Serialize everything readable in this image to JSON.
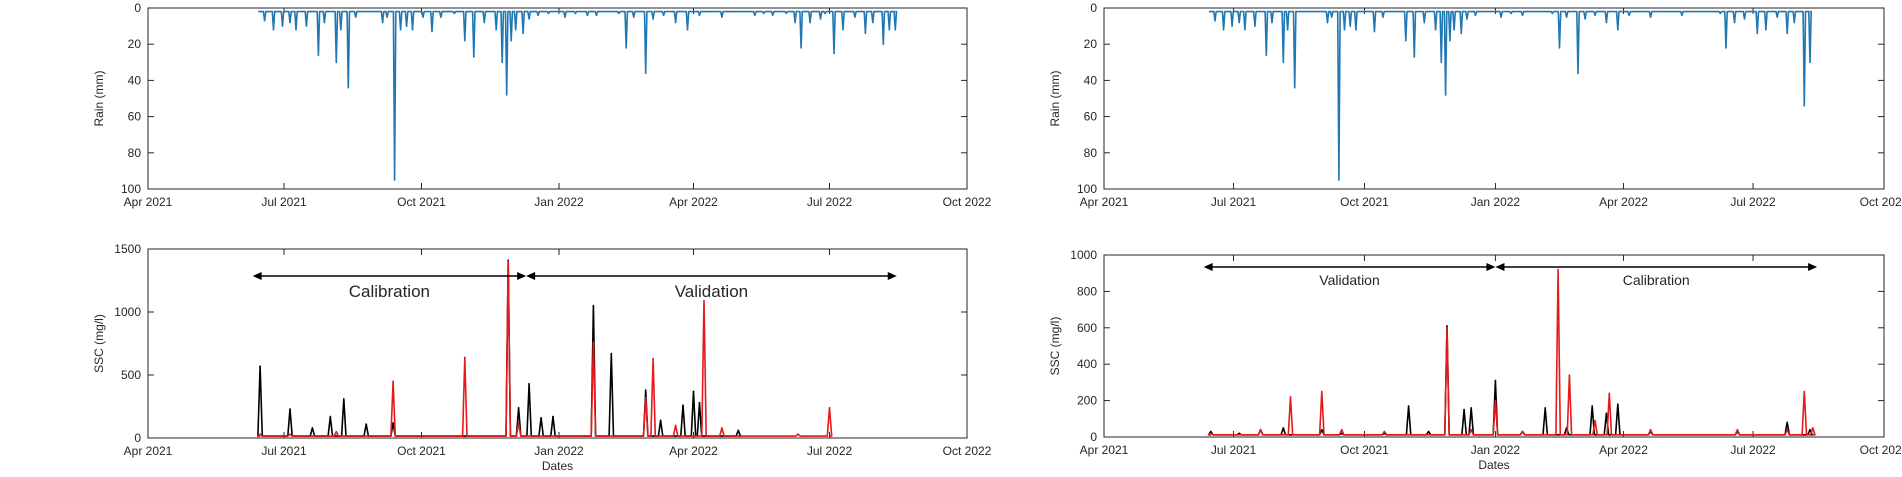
{
  "figure": {
    "xlabel": "Dates",
    "x_ticks": [
      "Apr 2021",
      "Jul 2021",
      "Oct 2021",
      "Jan 2022",
      "Apr 2022",
      "Jul 2022",
      "Oct 2022"
    ]
  },
  "colors": {
    "rain": "#1f77b4",
    "observed": "#000000",
    "simulated": "#e41a1c",
    "axis": "#262626"
  },
  "chart_data": [
    {
      "panel": "left-top",
      "type": "line",
      "title": "",
      "xlabel": "",
      "ylabel": "Rain (mm)",
      "xlim": [
        "2021-04-01",
        "2022-10-01"
      ],
      "ylim": [
        100,
        0
      ],
      "y_reversed": true,
      "y_ticks": [
        0,
        20,
        40,
        60,
        80,
        100
      ],
      "series": [
        {
          "color": "#1f77b4",
          "values": [
            [
              "2021-06-15",
              2
            ],
            [
              "2021-06-18",
              7
            ],
            [
              "2021-06-24",
              12
            ],
            [
              "2021-06-30",
              10
            ],
            [
              "2021-07-05",
              8
            ],
            [
              "2021-07-09",
              12
            ],
            [
              "2021-07-16",
              10
            ],
            [
              "2021-07-24",
              26
            ],
            [
              "2021-07-28",
              8
            ],
            [
              "2021-08-05",
              30
            ],
            [
              "2021-08-08",
              12
            ],
            [
              "2021-08-13",
              44
            ],
            [
              "2021-08-18",
              5
            ],
            [
              "2021-09-05",
              8
            ],
            [
              "2021-09-08",
              5
            ],
            [
              "2021-09-13",
              95
            ],
            [
              "2021-09-17",
              12
            ],
            [
              "2021-09-21",
              10
            ],
            [
              "2021-09-25",
              12
            ],
            [
              "2021-10-02",
              5
            ],
            [
              "2021-10-08",
              13
            ],
            [
              "2021-10-14",
              5
            ],
            [
              "2021-10-23",
              3
            ],
            [
              "2021-10-30",
              18
            ],
            [
              "2021-11-05",
              27
            ],
            [
              "2021-11-12",
              8
            ],
            [
              "2021-11-20",
              12
            ],
            [
              "2021-11-24",
              30
            ],
            [
              "2021-11-27",
              48
            ],
            [
              "2021-11-30",
              18
            ],
            [
              "2021-12-03",
              12
            ],
            [
              "2021-12-08",
              14
            ],
            [
              "2021-12-12",
              6
            ],
            [
              "2021-12-18",
              4
            ],
            [
              "2021-12-25",
              3
            ],
            [
              "2022-01-05",
              5
            ],
            [
              "2022-01-12",
              3
            ],
            [
              "2022-01-20",
              4
            ],
            [
              "2022-01-26",
              4
            ],
            [
              "2022-02-10",
              3
            ],
            [
              "2022-02-15",
              22
            ],
            [
              "2022-02-20",
              5
            ],
            [
              "2022-02-28",
              36
            ],
            [
              "2022-03-05",
              6
            ],
            [
              "2022-03-12",
              4
            ],
            [
              "2022-03-20",
              8
            ],
            [
              "2022-03-28",
              12
            ],
            [
              "2022-04-05",
              4
            ],
            [
              "2022-04-12",
              2
            ],
            [
              "2022-04-20",
              5
            ],
            [
              "2022-04-25",
              2
            ],
            [
              "2022-05-05",
              2
            ],
            [
              "2022-05-12",
              4
            ],
            [
              "2022-05-18",
              3
            ],
            [
              "2022-05-24",
              4
            ],
            [
              "2022-06-02",
              3
            ],
            [
              "2022-06-08",
              8
            ],
            [
              "2022-06-12",
              22
            ],
            [
              "2022-06-18",
              8
            ],
            [
              "2022-06-25",
              6
            ],
            [
              "2022-06-28",
              3
            ],
            [
              "2022-07-04",
              25
            ],
            [
              "2022-07-10",
              12
            ],
            [
              "2022-07-18",
              5
            ],
            [
              "2022-07-25",
              14
            ],
            [
              "2022-07-30",
              8
            ],
            [
              "2022-08-06",
              20
            ],
            [
              "2022-08-10",
              12
            ],
            [
              "2022-08-14",
              12
            ]
          ]
        }
      ]
    },
    {
      "panel": "left-bottom",
      "type": "line",
      "title": "",
      "xlabel": "Dates",
      "ylabel": "SSC (mg/l)",
      "xlim": [
        "2021-04-01",
        "2022-10-01"
      ],
      "ylim": [
        0,
        1500
      ],
      "y_ticks": [
        0,
        500,
        1000,
        1500
      ],
      "series": [
        {
          "color": "#000000",
          "values": [
            [
              "2021-06-15",
              570
            ],
            [
              "2021-07-05",
              230
            ],
            [
              "2021-07-20",
              80
            ],
            [
              "2021-08-01",
              170
            ],
            [
              "2021-08-10",
              310
            ],
            [
              "2021-08-25",
              110
            ],
            [
              "2021-09-12",
              120
            ],
            [
              "2021-11-28",
              1410
            ],
            [
              "2021-12-05",
              240
            ],
            [
              "2021-12-12",
              430
            ],
            [
              "2021-12-20",
              160
            ],
            [
              "2021-12-28",
              170
            ],
            [
              "2022-01-24",
              1050
            ],
            [
              "2022-02-05",
              670
            ],
            [
              "2022-02-28",
              380
            ],
            [
              "2022-03-10",
              140
            ],
            [
              "2022-03-25",
              260
            ],
            [
              "2022-04-01",
              370
            ],
            [
              "2022-04-05",
              280
            ],
            [
              "2022-05-01",
              60
            ]
          ]
        },
        {
          "color": "#e41a1c",
          "values": [
            [
              "2021-06-15",
              30
            ],
            [
              "2021-07-05",
              30
            ],
            [
              "2021-08-05",
              50
            ],
            [
              "2021-09-12",
              450
            ],
            [
              "2021-10-30",
              640
            ],
            [
              "2021-11-28",
              1400
            ],
            [
              "2021-12-05",
              120
            ],
            [
              "2022-01-24",
              760
            ],
            [
              "2022-02-28",
              320
            ],
            [
              "2022-03-05",
              630
            ],
            [
              "2022-03-20",
              100
            ],
            [
              "2022-04-08",
              1090
            ],
            [
              "2022-04-20",
              80
            ],
            [
              "2022-06-10",
              30
            ],
            [
              "2022-07-01",
              240
            ]
          ]
        }
      ],
      "annotations": [
        {
          "text": "Calibration",
          "from": "2021-06-10",
          "to": "2021-12-10"
        },
        {
          "text": "Validation",
          "from": "2021-12-10",
          "to": "2022-08-15"
        }
      ]
    },
    {
      "panel": "right-top",
      "type": "line",
      "title": "",
      "xlabel": "",
      "ylabel": "Rain (mm)",
      "xlim": [
        "2021-04-01",
        "2022-10-01"
      ],
      "ylim": [
        100,
        0
      ],
      "y_reversed": true,
      "y_ticks": [
        0,
        20,
        40,
        60,
        80,
        100
      ],
      "series": [
        {
          "color": "#1f77b4",
          "values": [
            [
              "2021-06-15",
              2
            ],
            [
              "2021-06-18",
              7
            ],
            [
              "2021-06-24",
              12
            ],
            [
              "2021-06-30",
              10
            ],
            [
              "2021-07-05",
              8
            ],
            [
              "2021-07-09",
              12
            ],
            [
              "2021-07-16",
              10
            ],
            [
              "2021-07-24",
              26
            ],
            [
              "2021-07-28",
              8
            ],
            [
              "2021-08-05",
              30
            ],
            [
              "2021-08-08",
              12
            ],
            [
              "2021-08-13",
              44
            ],
            [
              "2021-09-05",
              8
            ],
            [
              "2021-09-08",
              5
            ],
            [
              "2021-09-13",
              95
            ],
            [
              "2021-09-17",
              12
            ],
            [
              "2021-09-21",
              10
            ],
            [
              "2021-09-25",
              12
            ],
            [
              "2021-10-08",
              13
            ],
            [
              "2021-10-14",
              5
            ],
            [
              "2021-10-30",
              18
            ],
            [
              "2021-11-05",
              27
            ],
            [
              "2021-11-12",
              8
            ],
            [
              "2021-11-20",
              12
            ],
            [
              "2021-11-24",
              30
            ],
            [
              "2021-11-27",
              48
            ],
            [
              "2021-11-30",
              18
            ],
            [
              "2021-12-03",
              12
            ],
            [
              "2021-12-08",
              14
            ],
            [
              "2021-12-12",
              6
            ],
            [
              "2021-12-18",
              4
            ],
            [
              "2022-01-05",
              5
            ],
            [
              "2022-01-12",
              3
            ],
            [
              "2022-01-20",
              4
            ],
            [
              "2022-02-10",
              3
            ],
            [
              "2022-02-15",
              22
            ],
            [
              "2022-02-20",
              5
            ],
            [
              "2022-02-28",
              36
            ],
            [
              "2022-03-05",
              6
            ],
            [
              "2022-03-12",
              4
            ],
            [
              "2022-03-20",
              8
            ],
            [
              "2022-03-28",
              12
            ],
            [
              "2022-04-05",
              4
            ],
            [
              "2022-04-12",
              2
            ],
            [
              "2022-04-20",
              5
            ],
            [
              "2022-05-05",
              2
            ],
            [
              "2022-05-12",
              4
            ],
            [
              "2022-06-08",
              3
            ],
            [
              "2022-06-12",
              22
            ],
            [
              "2022-06-18",
              8
            ],
            [
              "2022-06-25",
              6
            ],
            [
              "2022-07-04",
              14
            ],
            [
              "2022-07-10",
              12
            ],
            [
              "2022-07-18",
              5
            ],
            [
              "2022-07-25",
              14
            ],
            [
              "2022-07-30",
              8
            ],
            [
              "2022-08-06",
              54
            ],
            [
              "2022-08-10",
              30
            ]
          ]
        }
      ]
    },
    {
      "panel": "right-bottom",
      "type": "line",
      "title": "",
      "xlabel": "Dates",
      "ylabel": "SSC (mg/l)",
      "xlim": [
        "2021-04-01",
        "2022-10-01"
      ],
      "ylim": [
        0,
        1000
      ],
      "y_ticks": [
        0,
        200,
        400,
        600,
        800,
        1000
      ],
      "series": [
        {
          "color": "#000000",
          "values": [
            [
              "2021-06-15",
              30
            ],
            [
              "2021-07-05",
              20
            ],
            [
              "2021-07-20",
              40
            ],
            [
              "2021-08-05",
              50
            ],
            [
              "2021-09-01",
              40
            ],
            [
              "2021-09-15",
              20
            ],
            [
              "2021-10-15",
              20
            ],
            [
              "2021-11-01",
              170
            ],
            [
              "2021-11-15",
              30
            ],
            [
              "2021-11-28",
              610
            ],
            [
              "2021-12-10",
              150
            ],
            [
              "2021-12-15",
              160
            ],
            [
              "2022-01-01",
              310
            ],
            [
              "2022-01-20",
              30
            ],
            [
              "2022-02-05",
              160
            ],
            [
              "2022-02-20",
              50
            ],
            [
              "2022-03-10",
              170
            ],
            [
              "2022-03-20",
              130
            ],
            [
              "2022-03-28",
              180
            ],
            [
              "2022-04-20",
              30
            ],
            [
              "2022-06-20",
              30
            ],
            [
              "2022-07-25",
              80
            ],
            [
              "2022-08-10",
              40
            ]
          ]
        },
        {
          "color": "#e41a1c",
          "values": [
            [
              "2021-06-15",
              20
            ],
            [
              "2021-07-20",
              40
            ],
            [
              "2021-08-10",
              220
            ],
            [
              "2021-09-01",
              250
            ],
            [
              "2021-09-15",
              40
            ],
            [
              "2021-10-15",
              30
            ],
            [
              "2021-11-28",
              600
            ],
            [
              "2021-12-15",
              40
            ],
            [
              "2022-01-01",
              200
            ],
            [
              "2022-01-20",
              30
            ],
            [
              "2022-02-14",
              920
            ],
            [
              "2022-02-22",
              340
            ],
            [
              "2022-03-12",
              90
            ],
            [
              "2022-03-22",
              240
            ],
            [
              "2022-04-20",
              40
            ],
            [
              "2022-06-20",
              40
            ],
            [
              "2022-07-25",
              40
            ],
            [
              "2022-08-06",
              250
            ],
            [
              "2022-08-12",
              50
            ]
          ]
        }
      ],
      "annotations": [
        {
          "text": "Validation",
          "from": "2021-06-10",
          "to": "2022-01-01"
        },
        {
          "text": "Calibration",
          "from": "2022-01-01",
          "to": "2022-08-15"
        }
      ]
    }
  ]
}
